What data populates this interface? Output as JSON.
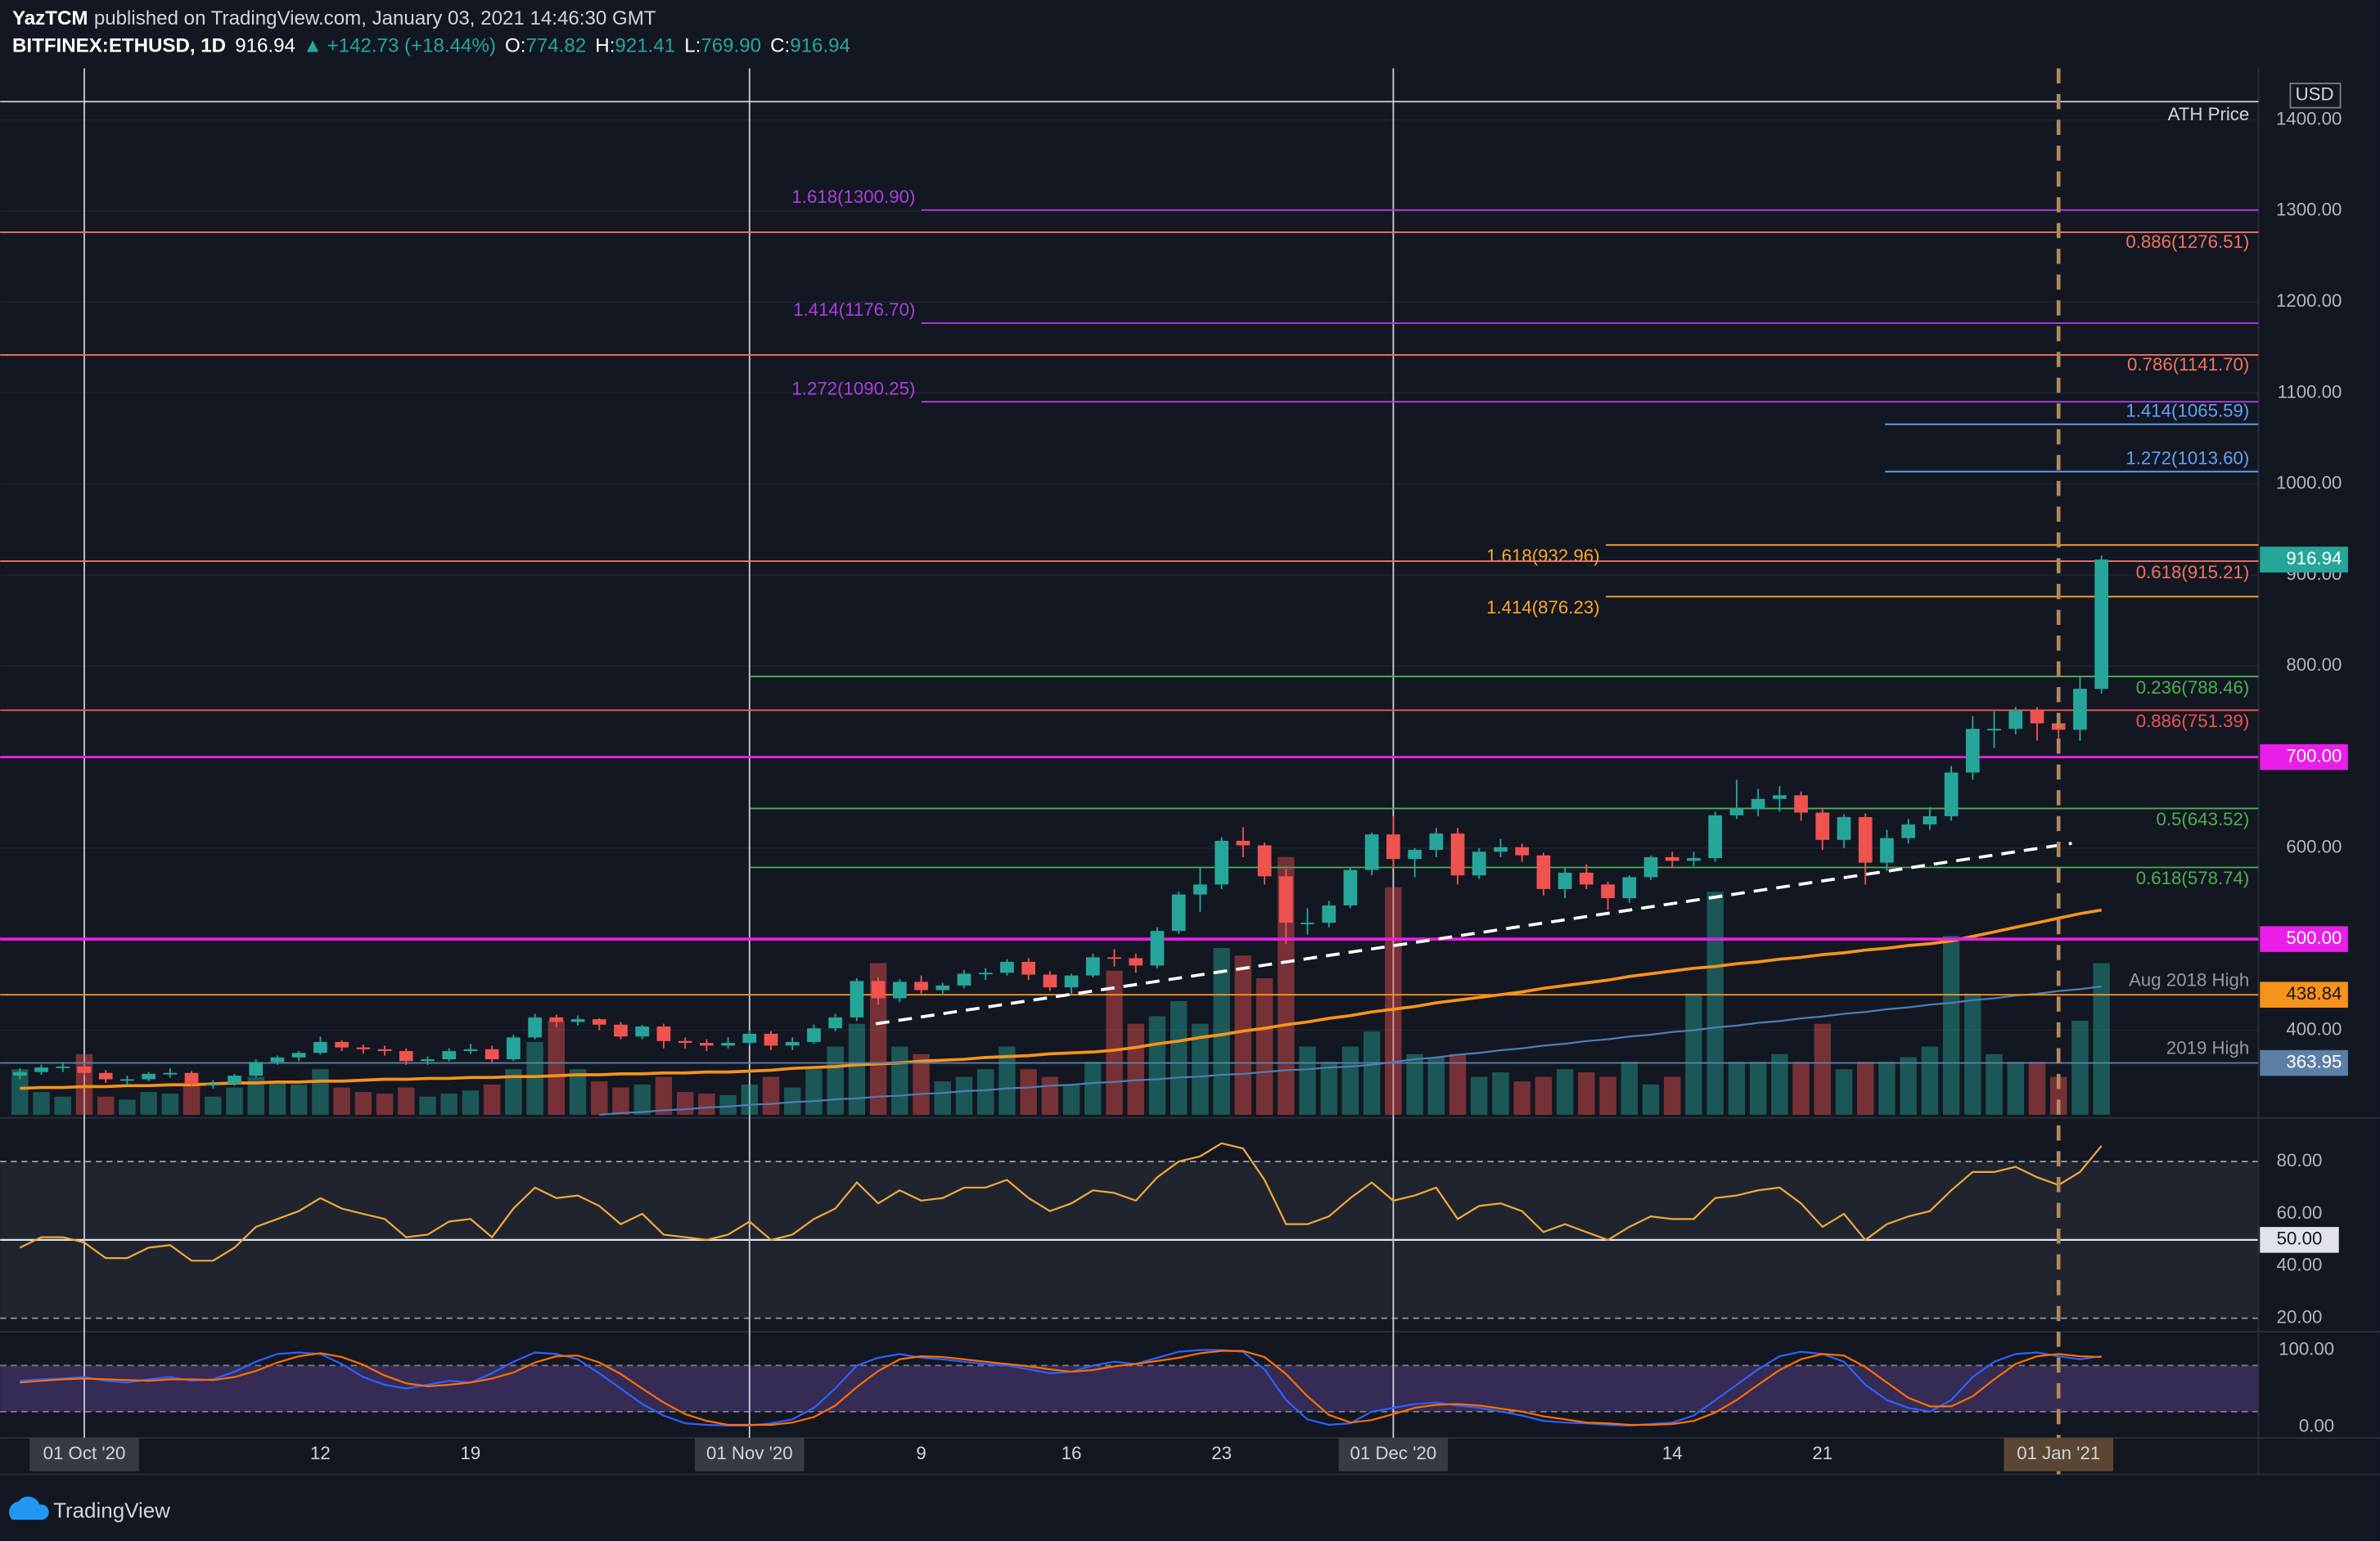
{
  "header": {
    "author": "YazTCM",
    "published": "published on TradingView.com, January 03, 2021 14:46:30 GMT",
    "symbol": "BITFINEX:ETHUSD, 1D",
    "last": "916.94",
    "arrow": "▲",
    "change": "+142.73 (+18.44%)",
    "o_label": "O:",
    "o": "774.82",
    "h_label": "H:",
    "h": "921.41",
    "l_label": "L:",
    "l": "769.90",
    "c_label": "C:",
    "c": "916.94"
  },
  "footer": {
    "brand": "TradingView"
  },
  "chart_data": {
    "type": "candlestick",
    "currency": "USD",
    "up_color": "#26a69a",
    "down_color": "#ef5350",
    "categories": [
      null,
      null,
      null,
      "01 Oct '20",
      null,
      null,
      null,
      null,
      null,
      null,
      null,
      null,
      null,
      null,
      "12",
      null,
      null,
      null,
      null,
      null,
      null,
      "19",
      null,
      null,
      null,
      null,
      null,
      null,
      null,
      null,
      null,
      null,
      null,
      null,
      "01 Nov '20",
      null,
      null,
      null,
      null,
      null,
      null,
      null,
      "9",
      null,
      null,
      null,
      null,
      null,
      null,
      "16",
      null,
      null,
      null,
      null,
      null,
      null,
      "23",
      null,
      null,
      null,
      null,
      null,
      null,
      null,
      "01 Dec '20",
      null,
      null,
      null,
      null,
      null,
      null,
      null,
      null,
      null,
      null,
      null,
      null,
      "14",
      null,
      null,
      null,
      null,
      null,
      null,
      "21",
      null,
      null,
      null,
      null,
      null,
      null,
      null,
      null,
      null,
      null,
      "01 Jan '21",
      null,
      null
    ],
    "open": [
      350,
      354,
      359,
      360,
      353,
      346,
      346,
      352,
      353,
      341,
      341,
      350,
      365,
      370,
      375,
      387,
      381,
      379,
      377,
      366,
      368,
      377,
      379,
      368,
      392,
      414,
      409,
      412,
      406,
      393,
      404,
      388,
      386,
      383,
      386,
      396,
      383,
      387,
      402,
      414,
      454,
      435,
      453,
      444,
      449,
      462,
      463,
      475,
      461,
      447,
      460,
      480,
      479,
      471,
      509,
      549,
      560,
      608,
      603,
      569,
      518,
      518,
      537,
      576,
      615,
      588,
      598,
      616,
      570,
      596,
      601,
      592,
      555,
      573,
      560,
      545,
      568,
      590,
      586,
      589,
      636,
      643,
      654,
      658,
      639,
      609,
      634,
      584,
      611,
      626,
      635,
      683,
      731,
      731,
      751,
      737,
      730,
      774.82
    ],
    "high": [
      358,
      362,
      365,
      363,
      356,
      350,
      354,
      358,
      355,
      345,
      352,
      368,
      372,
      377,
      393,
      389,
      384,
      383,
      380,
      371,
      380,
      385,
      383,
      395,
      418,
      417,
      416,
      413,
      409,
      406,
      407,
      392,
      390,
      392,
      400,
      399,
      392,
      406,
      418,
      457,
      458,
      456,
      460,
      452,
      466,
      468,
      478,
      479,
      465,
      462,
      484,
      489,
      484,
      513,
      552,
      578,
      612,
      623,
      606,
      577,
      534,
      542,
      578,
      617,
      635,
      600,
      622,
      622,
      600,
      610,
      605,
      595,
      578,
      582,
      563,
      570,
      592,
      596,
      596,
      640,
      675,
      665,
      668,
      662,
      644,
      637,
      638,
      620,
      632,
      645,
      690,
      745,
      750,
      755,
      755,
      748,
      788,
      921.41
    ],
    "low": [
      346,
      351,
      354,
      350,
      342,
      340,
      344,
      348,
      338,
      336,
      339,
      348,
      362,
      366,
      373,
      377,
      374,
      372,
      362,
      362,
      366,
      374,
      365,
      366,
      390,
      403,
      405,
      400,
      390,
      390,
      380,
      380,
      377,
      380,
      383,
      378,
      378,
      385,
      399,
      410,
      428,
      431,
      440,
      438,
      446,
      455,
      460,
      455,
      443,
      440,
      458,
      470,
      463,
      468,
      506,
      530,
      555,
      590,
      560,
      495,
      505,
      513,
      534,
      570,
      578,
      568,
      590,
      560,
      566,
      590,
      585,
      548,
      545,
      555,
      532,
      540,
      565,
      578,
      580,
      585,
      632,
      635,
      640,
      630,
      598,
      600,
      560,
      575,
      605,
      620,
      630,
      675,
      710,
      725,
      718,
      715,
      718,
      769.9
    ],
    "close": [
      354,
      359,
      360,
      353,
      346,
      346,
      352,
      353,
      341,
      341,
      350,
      365,
      370,
      375,
      387,
      381,
      379,
      377,
      366,
      368,
      377,
      379,
      368,
      392,
      414,
      409,
      412,
      406,
      393,
      404,
      388,
      386,
      383,
      386,
      396,
      383,
      387,
      402,
      414,
      454,
      435,
      453,
      444,
      449,
      462,
      463,
      475,
      461,
      447,
      460,
      480,
      479,
      471,
      509,
      549,
      560,
      608,
      603,
      569,
      518,
      518,
      537,
      576,
      615,
      588,
      598,
      616,
      570,
      596,
      601,
      592,
      555,
      573,
      560,
      545,
      568,
      590,
      586,
      589,
      636,
      643,
      654,
      658,
      639,
      609,
      634,
      584,
      611,
      626,
      635,
      683,
      731,
      731,
      751,
      737,
      730,
      775,
      916.94
    ],
    "volume": [
      30,
      15,
      12,
      40,
      12,
      10,
      15,
      14,
      20,
      12,
      18,
      25,
      22,
      20,
      30,
      18,
      15,
      14,
      18,
      12,
      14,
      16,
      20,
      30,
      48,
      62,
      30,
      22,
      18,
      20,
      25,
      15,
      14,
      13,
      20,
      25,
      18,
      30,
      45,
      60,
      100,
      45,
      40,
      22,
      25,
      30,
      45,
      30,
      25,
      20,
      35,
      95,
      60,
      65,
      75,
      60,
      110,
      105,
      90,
      170,
      45,
      35,
      45,
      55,
      150,
      40,
      38,
      40,
      25,
      28,
      22,
      25,
      30,
      28,
      25,
      35,
      20,
      25,
      80,
      147,
      35,
      35,
      40,
      35,
      60,
      30,
      35,
      35,
      38,
      45,
      118,
      80,
      40,
      35,
      35,
      25,
      62,
      100
    ],
    "moving_averages": [
      {
        "color": "#f7931a",
        "values": [
          336,
          337,
          337,
          338,
          338,
          339,
          339,
          340,
          340,
          341,
          342,
          342,
          343,
          343,
          344,
          344,
          345,
          346,
          346,
          347,
          347,
          348,
          348,
          349,
          349,
          350,
          351,
          351,
          352,
          352,
          353,
          353,
          354,
          354,
          355,
          356,
          358,
          359,
          360,
          362,
          363,
          364,
          366,
          367,
          368,
          370,
          371,
          372,
          374,
          375,
          376,
          378,
          381,
          385,
          388,
          392,
          395,
          399,
          402,
          406,
          409,
          413,
          416,
          420,
          423,
          426,
          430,
          433,
          436,
          439,
          442,
          446,
          449,
          452,
          455,
          459,
          462,
          465,
          468,
          470,
          473,
          475,
          478,
          480,
          483,
          485,
          488,
          490,
          493,
          495,
          498,
          503,
          508,
          513,
          518,
          523,
          528,
          532
        ]
      },
      {
        "color": "#4f7db3",
        "values": [
          null,
          null,
          null,
          null,
          null,
          null,
          null,
          null,
          null,
          null,
          null,
          null,
          null,
          null,
          null,
          null,
          null,
          null,
          null,
          null,
          null,
          null,
          null,
          null,
          null,
          null,
          null,
          307,
          309,
          310,
          312,
          313,
          315,
          316,
          318,
          319,
          321,
          322,
          324,
          325,
          327,
          328,
          330,
          331,
          333,
          334,
          336,
          337,
          339,
          340,
          342,
          343,
          345,
          346,
          348,
          349,
          351,
          352,
          354,
          356,
          357,
          359,
          360,
          362,
          365,
          368,
          370,
          373,
          375,
          378,
          380,
          383,
          385,
          388,
          390,
          393,
          395,
          398,
          400,
          403,
          405,
          408,
          410,
          413,
          415,
          418,
          420,
          423,
          425,
          428,
          430,
          433,
          435,
          438,
          440,
          443,
          445,
          448
        ]
      }
    ],
    "ylim": [
      307,
      1445
    ],
    "yticks": [
      {
        "value": 400,
        "label": "400.00"
      },
      {
        "value": 500,
        "label": "500.00"
      },
      {
        "value": 600,
        "label": "600.00"
      },
      {
        "value": 700,
        "label": "700.00"
      },
      {
        "value": 800,
        "label": "800.00"
      },
      {
        "value": 900,
        "label": "900.00"
      },
      {
        "value": 1000,
        "label": "1000.00"
      },
      {
        "value": 1100,
        "label": "1100.00"
      },
      {
        "value": 1200,
        "label": "1200.00"
      },
      {
        "value": 1300,
        "label": "1300.00"
      },
      {
        "value": 1400,
        "label": "1400.00"
      }
    ],
    "grid": true,
    "levels": [
      {
        "value": 1420,
        "label": "ATH Price",
        "color": "#d1d4dc"
      },
      {
        "value": 1300.9,
        "label": "1.618(1300.90)",
        "color": "#a93ee0"
      },
      {
        "value": 1276.51,
        "label": "0.886(1276.51)",
        "color": "#f0735f"
      },
      {
        "value": 1176.7,
        "label": "1.414(1176.70)",
        "color": "#a93ee0"
      },
      {
        "value": 1141.7,
        "label": "0.786(1141.70)",
        "color": "#f0735f"
      },
      {
        "value": 1090.25,
        "label": "1.272(1090.25)",
        "color": "#a93ee0"
      },
      {
        "value": 1065.59,
        "label": "1.414(1065.59)",
        "color": "#64a0f0"
      },
      {
        "value": 1013.6,
        "label": "1.272(1013.60)",
        "color": "#64a0f0"
      },
      {
        "value": 932.96,
        "label": "1.618(932.96)",
        "color": "#ffa726"
      },
      {
        "value": 915.21,
        "label": "0.618(915.21)",
        "color": "#f0735f"
      },
      {
        "value": 876.23,
        "label": "1.414(876.23)",
        "color": "#ffa726"
      },
      {
        "value": 788.46,
        "label": "0.236(788.46)",
        "color": "#4caf50"
      },
      {
        "value": 751.39,
        "label": "0.886(751.39)",
        "color": "#ef5350"
      },
      {
        "value": 700,
        "tag": "700.00",
        "color": "#e91ee8"
      },
      {
        "value": 643.52,
        "label": "0.5(643.52)",
        "color": "#4caf50"
      },
      {
        "value": 578.74,
        "label": "0.618(578.74)",
        "color": "#4caf50"
      },
      {
        "value": 500,
        "tag": "500.00",
        "color": "#e91ee8"
      },
      {
        "value": 438.84,
        "label": "Aug 2018 High",
        "tag": "438.84",
        "color": "#f7931a",
        "tag_text_color": "#131722"
      },
      {
        "value": 363.95,
        "label": "2019 High",
        "tag": "363.95",
        "color": "#5b7fa6"
      }
    ],
    "rsi": {
      "color": "#f0a83a",
      "ylim": [
        16,
        95
      ],
      "band": [
        20,
        80
      ],
      "midline": {
        "value": 50,
        "label": "50.00"
      },
      "yticks": [
        {
          "value": 20,
          "label": "20.00"
        },
        {
          "value": 40,
          "label": "40.00"
        },
        {
          "value": 60,
          "label": "60.00"
        },
        {
          "value": 80,
          "label": "80.00"
        }
      ],
      "values": [
        47,
        51,
        51,
        49,
        43,
        43,
        47,
        48,
        42,
        42,
        47,
        55,
        58,
        61,
        66,
        62,
        60,
        58,
        51,
        52,
        57,
        58,
        51,
        62,
        70,
        66,
        67,
        63,
        56,
        60,
        52,
        51,
        50,
        52,
        57,
        50,
        52,
        58,
        62,
        72,
        64,
        69,
        65,
        66,
        70,
        70,
        73,
        66,
        61,
        64,
        69,
        68,
        65,
        74,
        80,
        82,
        87,
        85,
        73,
        56,
        56,
        59,
        66,
        72,
        65,
        67,
        70,
        58,
        63,
        64,
        61,
        53,
        56,
        53,
        50,
        55,
        59,
        58,
        58,
        66,
        67,
        69,
        70,
        64,
        55,
        60,
        50,
        56,
        59,
        61,
        69,
        76,
        76,
        78,
        74,
        71,
        76,
        86
      ]
    },
    "stoch": {
      "ylim": [
        -14,
        120
      ],
      "band": [
        20,
        80
      ],
      "yticks": [
        {
          "value": 0,
          "label": "0.00"
        },
        {
          "value": 100,
          "label": "100.00"
        }
      ],
      "series": [
        {
          "color": "#2962ff",
          "values": [
            60,
            62,
            63,
            65,
            60,
            58,
            62,
            65,
            60,
            62,
            72,
            85,
            95,
            97,
            95,
            82,
            65,
            55,
            50,
            55,
            60,
            58,
            70,
            85,
            97,
            95,
            88,
            70,
            50,
            30,
            15,
            5,
            3,
            2,
            2,
            5,
            10,
            25,
            50,
            80,
            90,
            95,
            90,
            88,
            85,
            82,
            80,
            75,
            70,
            72,
            80,
            85,
            82,
            90,
            98,
            100,
            100,
            98,
            75,
            35,
            10,
            3,
            5,
            20,
            25,
            30,
            32,
            28,
            25,
            20,
            15,
            8,
            6,
            5,
            3,
            2,
            4,
            6,
            15,
            35,
            55,
            75,
            92,
            98,
            95,
            85,
            55,
            35,
            25,
            20,
            35,
            65,
            85,
            95,
            97,
            92,
            88,
            92
          ]
        },
        {
          "color": "#ff6d00",
          "values": [
            58,
            60,
            62,
            63,
            62,
            61,
            60,
            62,
            62,
            61,
            65,
            73,
            84,
            92,
            96,
            91,
            81,
            67,
            57,
            53,
            55,
            58,
            63,
            71,
            84,
            92,
            93,
            84,
            69,
            50,
            32,
            17,
            8,
            3,
            3,
            3,
            6,
            13,
            28,
            52,
            73,
            88,
            92,
            91,
            88,
            85,
            82,
            79,
            75,
            72,
            74,
            79,
            82,
            86,
            90,
            96,
            99,
            99,
            91,
            69,
            40,
            16,
            6,
            9,
            17,
            25,
            29,
            30,
            28,
            24,
            20,
            14,
            10,
            6,
            5,
            3,
            3,
            4,
            8,
            19,
            35,
            55,
            74,
            88,
            95,
            93,
            78,
            58,
            38,
            27,
            27,
            40,
            62,
            82,
            92,
            95,
            92,
            91
          ]
        }
      ]
    }
  }
}
